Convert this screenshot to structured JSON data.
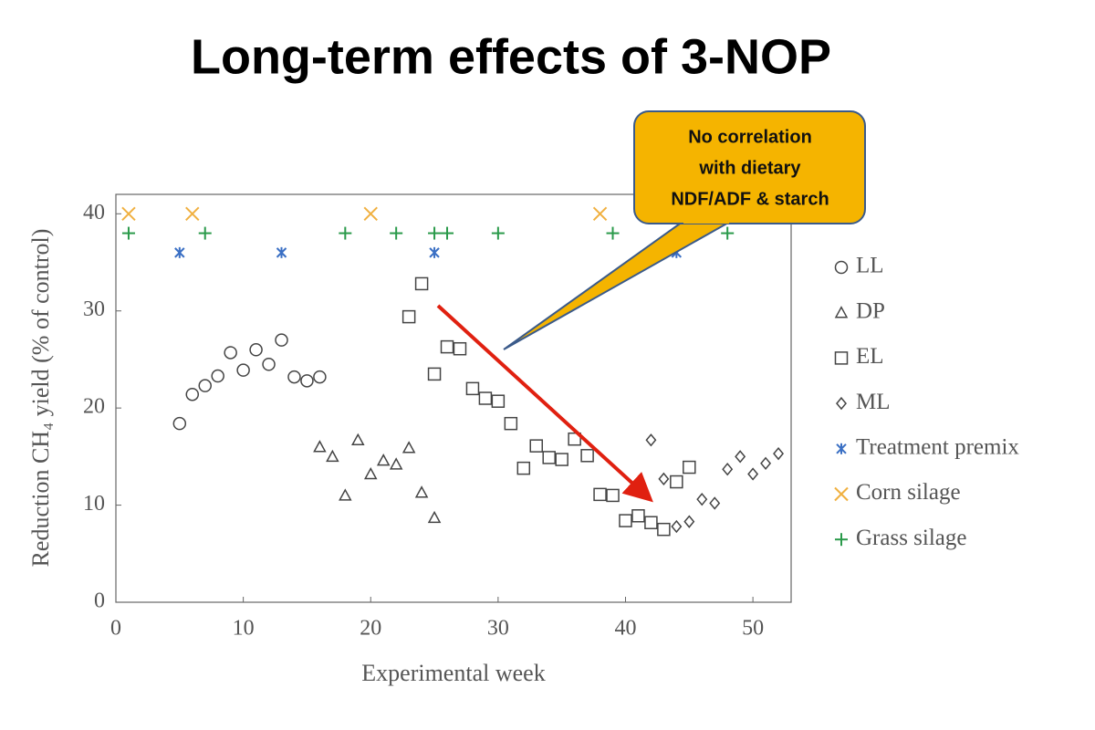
{
  "chart_data": {
    "type": "scatter",
    "title": "Long-term effects of 3-NOP",
    "xlabel": "Experimental week",
    "ylabel": "Reduction CH₄ yield (% of control)",
    "annotation": [
      "No correlation",
      "with dietary",
      "NDF/ADF & starch"
    ],
    "xlim": [
      0,
      53
    ],
    "ylim": [
      0,
      42
    ],
    "xticks": [
      0,
      10,
      20,
      30,
      40,
      50
    ],
    "yticks": [
      0,
      10,
      20,
      30,
      40
    ],
    "grid": false,
    "legend": "right",
    "series": [
      {
        "name": "LL",
        "color": "#444444",
        "marker": "circle",
        "x": [
          5,
          6,
          7,
          8,
          9,
          10,
          11,
          12,
          13,
          14,
          15,
          16
        ],
        "values": [
          18.4,
          21.4,
          22.3,
          23.3,
          25.7,
          23.9,
          26,
          24.5,
          27,
          23.2,
          22.8,
          23.2
        ]
      },
      {
        "name": "DP",
        "color": "#444444",
        "marker": "triangle",
        "x": [
          16,
          17,
          18,
          19,
          20,
          21,
          22,
          23,
          24,
          25
        ],
        "values": [
          16,
          15,
          11,
          16.7,
          13.2,
          14.6,
          14.2,
          15.9,
          11.3,
          8.7
        ]
      },
      {
        "name": "EL",
        "color": "#444444",
        "marker": "square",
        "x": [
          23,
          24,
          25,
          26,
          27,
          28,
          29,
          30,
          31,
          32,
          33,
          34,
          35,
          36,
          37,
          38,
          39,
          40,
          41,
          42,
          43,
          44,
          45
        ],
        "values": [
          29.4,
          32.8,
          23.5,
          26.3,
          26.1,
          22,
          21,
          20.7,
          18.4,
          13.8,
          16.1,
          14.9,
          14.7,
          16.8,
          15.1,
          11.1,
          11,
          8.4,
          8.9,
          8.2,
          7.5,
          12.4,
          13.9
        ]
      },
      {
        "name": "ML",
        "color": "#444444",
        "marker": "diamond",
        "x": [
          42,
          43,
          44,
          45,
          46,
          47,
          48,
          49,
          50,
          51,
          52
        ],
        "values": [
          16.7,
          12.7,
          7.8,
          8.3,
          10.6,
          10.2,
          13.7,
          15,
          13.2,
          14.3,
          15.3
        ]
      },
      {
        "name": "Treatment premix",
        "color": "#3a6fc4",
        "marker": "asterisk",
        "x": [
          5,
          13,
          25,
          44
        ],
        "values": [
          36,
          36,
          36,
          36
        ]
      },
      {
        "name": "Corn silage",
        "color": "#f0b040",
        "marker": "x",
        "x": [
          1,
          6,
          20,
          38
        ],
        "values": [
          40,
          40,
          40,
          40
        ]
      },
      {
        "name": "Grass silage",
        "color": "#2a9a4a",
        "marker": "plus",
        "x": [
          1,
          7,
          18,
          22,
          25,
          26,
          30,
          39,
          48
        ],
        "values": [
          38,
          38,
          38,
          38,
          38,
          38,
          38,
          38,
          38
        ]
      }
    ]
  }
}
